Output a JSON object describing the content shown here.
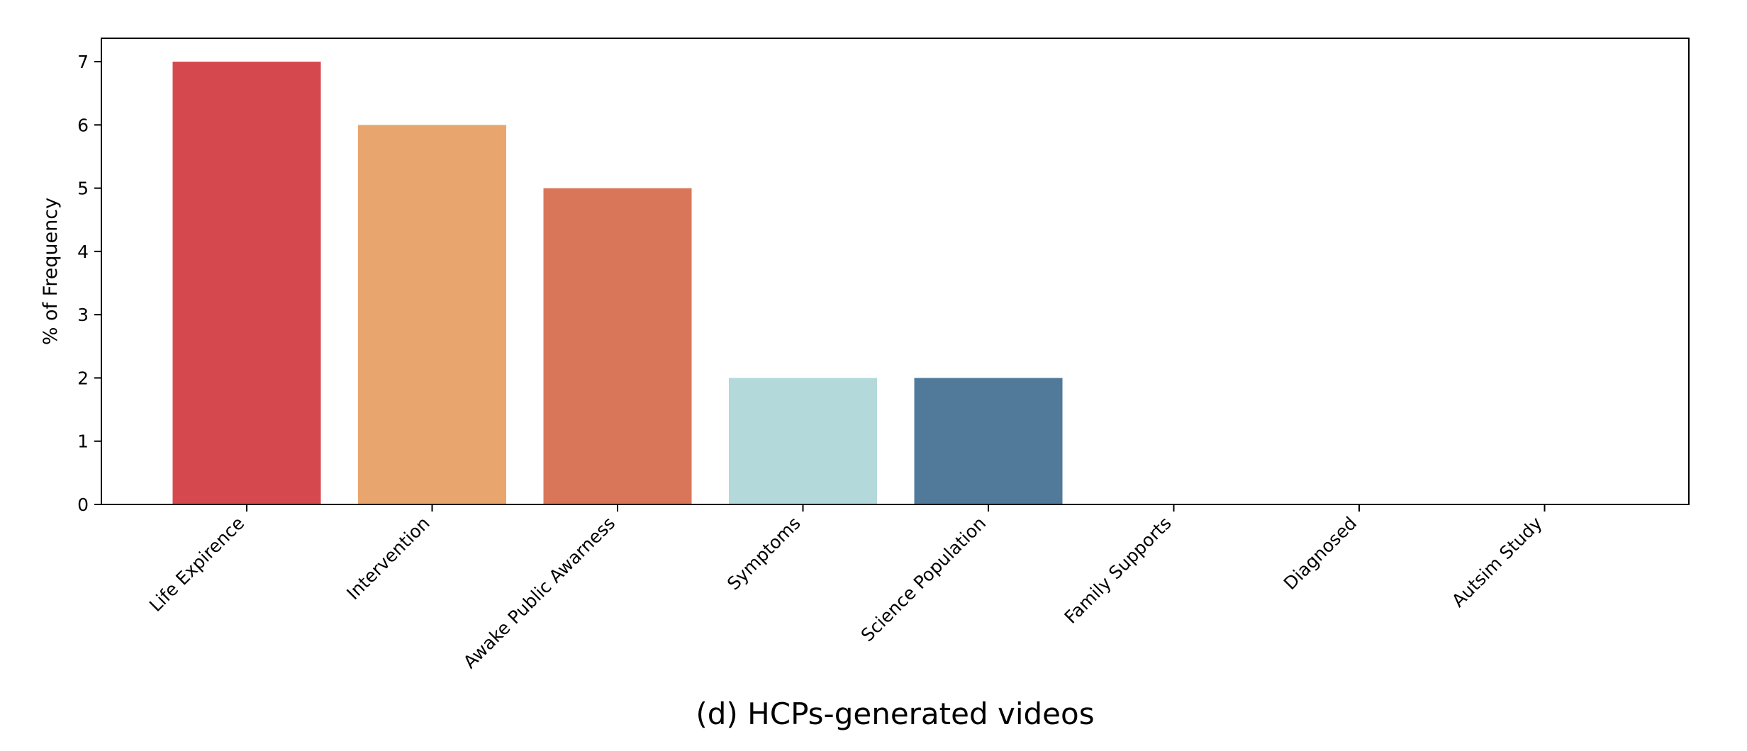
{
  "chart_data": {
    "type": "bar",
    "categories": [
      "Life Expirence",
      "Intervention",
      "Awake Public Awarness",
      "Symptoms",
      "Science Population",
      "Family Supports",
      "Diagnosed",
      "Autsim Study"
    ],
    "values": [
      7,
      6,
      5,
      2,
      2,
      0,
      0,
      0
    ],
    "colors": [
      "#d5494e",
      "#e9a56e",
      "#d9765a",
      "#b3d9db",
      "#517a9a",
      "#cccccc",
      "#cccccc",
      "#cccccc"
    ],
    "title": "",
    "xlabel": "",
    "ylabel": "% of Frequency",
    "caption": "(d) HCPs-generated videos",
    "ylim": [
      0,
      7.37
    ],
    "yticks": [
      0,
      1,
      2,
      3,
      4,
      5,
      6,
      7
    ],
    "grid": false,
    "legend": "none"
  }
}
